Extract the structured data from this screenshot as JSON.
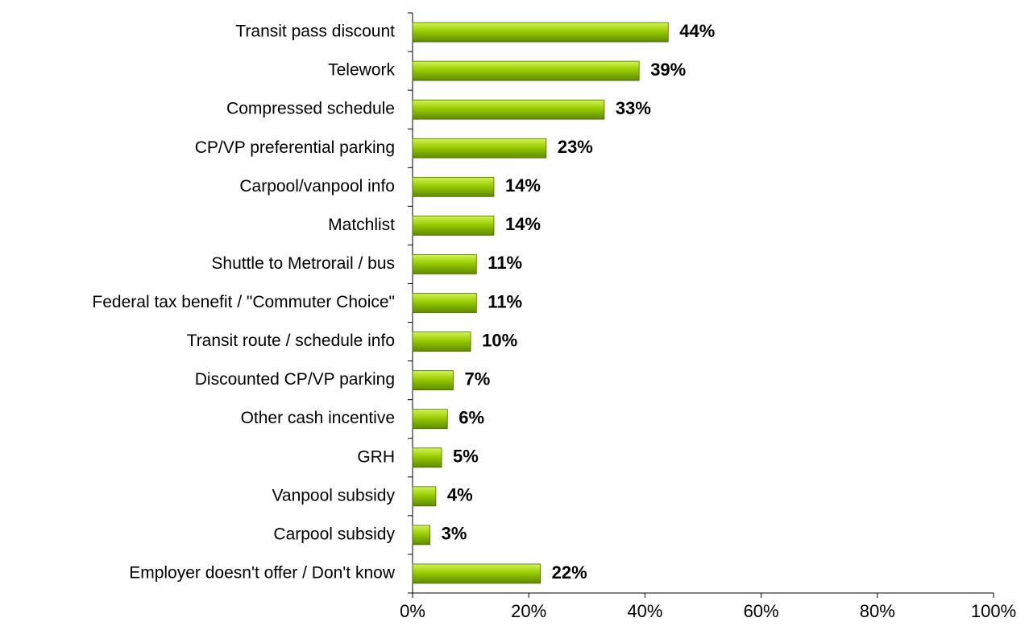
{
  "chart_data": {
    "type": "barh",
    "categories": [
      "Transit pass discount",
      "Telework",
      "Compressed schedule",
      "CP/VP preferential parking",
      "Carpool/vanpool info",
      "Matchlist",
      "Shuttle to Metrorail / bus",
      "Federal tax benefit / \"Commuter Choice\"",
      "Transit route / schedule info",
      "Discounted CP/VP parking",
      "Other cash incentive",
      "GRH",
      "Vanpool subsidy",
      "Carpool subsidy",
      "Employer doesn't offer / Don't know"
    ],
    "values": [
      44,
      39,
      33,
      23,
      14,
      14,
      11,
      11,
      10,
      7,
      6,
      5,
      4,
      3,
      22
    ],
    "value_labels": [
      "44%",
      "39%",
      "33%",
      "23%",
      "14%",
      "14%",
      "11%",
      "11%",
      "10%",
      "7%",
      "6%",
      "5%",
      "4%",
      "3%",
      "22%"
    ],
    "color": "#99cc00",
    "xlim": [
      0,
      100
    ],
    "xticks": [
      {
        "value": 0,
        "label": "0%"
      },
      {
        "value": 20,
        "label": "20%"
      },
      {
        "value": 40,
        "label": "40%"
      },
      {
        "value": 60,
        "label": "60%"
      },
      {
        "value": 80,
        "label": "80%"
      },
      {
        "value": 100,
        "label": "100%"
      }
    ],
    "grid": false
  }
}
